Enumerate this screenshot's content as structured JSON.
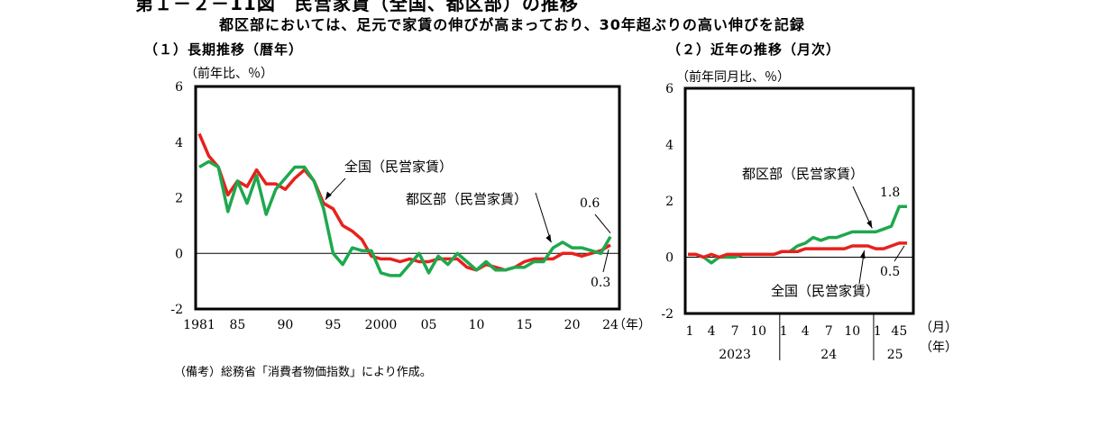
{
  "figure": {
    "title": "第１－２－11図　民営家賃（全国、都区部）の推移",
    "subtitle": "都区部においては、足元で家賃の伸びが高まっており、30年超ぶりの高い伸びを記録",
    "note": "（備考）総務省「消費者物価指数」により作成。",
    "colors": {
      "national": "#e8201c",
      "tokyo": "#1ea84e",
      "frame": "#000000"
    }
  },
  "chart_data": [
    {
      "type": "line",
      "heading": "（１）長期推移（暦年）",
      "ylabel": "（前年比、％）",
      "xlabel": "（年）",
      "ylim": [
        -2,
        6
      ],
      "yticks": [
        "-2",
        "0",
        "2",
        "4",
        "6"
      ],
      "xticks": [
        {
          "x": 1981,
          "label": "1981"
        },
        {
          "x": 1985,
          "label": "85"
        },
        {
          "x": 1990,
          "label": "90"
        },
        {
          "x": 1995,
          "label": "95"
        },
        {
          "x": 2000,
          "label": "2000"
        },
        {
          "x": 2005,
          "label": "05"
        },
        {
          "x": 2010,
          "label": "10"
        },
        {
          "x": 2015,
          "label": "15"
        },
        {
          "x": 2020,
          "label": "20"
        },
        {
          "x": 2024,
          "label": "24"
        }
      ],
      "x": [
        1981,
        1982,
        1983,
        1984,
        1985,
        1986,
        1987,
        1988,
        1989,
        1990,
        1991,
        1992,
        1993,
        1994,
        1995,
        1996,
        1997,
        1998,
        1999,
        2000,
        2001,
        2002,
        2003,
        2004,
        2005,
        2006,
        2007,
        2008,
        2009,
        2010,
        2011,
        2012,
        2013,
        2014,
        2015,
        2016,
        2017,
        2018,
        2019,
        2020,
        2021,
        2022,
        2023,
        2024
      ],
      "series": [
        {
          "name": "全国（民営家賃）",
          "key": "national",
          "values": [
            4.3,
            3.5,
            3.1,
            2.1,
            2.6,
            2.4,
            3.0,
            2.5,
            2.5,
            2.3,
            2.7,
            3.0,
            2.6,
            1.8,
            1.6,
            1.0,
            0.8,
            0.5,
            -0.1,
            -0.2,
            -0.2,
            -0.3,
            -0.2,
            -0.3,
            -0.3,
            -0.2,
            -0.2,
            -0.2,
            -0.5,
            -0.6,
            -0.4,
            -0.5,
            -0.6,
            -0.5,
            -0.3,
            -0.2,
            -0.2,
            -0.2,
            0.0,
            0.0,
            -0.1,
            0.0,
            0.1,
            0.3
          ]
        },
        {
          "name": "都区部（民営家賃）",
          "key": "tokyo",
          "values": [
            3.1,
            3.3,
            3.1,
            1.5,
            2.6,
            1.8,
            2.8,
            1.4,
            2.3,
            2.7,
            3.1,
            3.1,
            2.6,
            1.6,
            0.0,
            -0.4,
            0.2,
            0.1,
            0.1,
            -0.7,
            -0.8,
            -0.8,
            -0.4,
            0.0,
            -0.7,
            -0.1,
            -0.4,
            0.0,
            -0.3,
            -0.6,
            -0.3,
            -0.6,
            -0.6,
            -0.5,
            -0.5,
            -0.3,
            -0.3,
            0.2,
            0.4,
            0.2,
            0.2,
            0.1,
            0.0,
            0.6
          ]
        }
      ],
      "annotations": [
        {
          "text": "全国（民営家賃）",
          "series": "national",
          "year": 1994
        },
        {
          "text": "都区部（民営家賃）",
          "series": "tokyo",
          "year": 2018
        },
        {
          "text": "0.6",
          "series": "tokyo",
          "year": 2024
        },
        {
          "text": "0.3",
          "series": "national",
          "year": 2024
        }
      ]
    },
    {
      "type": "line",
      "heading": "（２）近年の推移（月次）",
      "ylabel": "（前年同月比、％）",
      "xlabel": "（月）",
      "xlabel2": "（年）",
      "ylim": [
        -2,
        6
      ],
      "yticks": [
        "-2",
        "0",
        "2",
        "4",
        "6"
      ],
      "month_ticks": [
        {
          "i": 0,
          "label": "1"
        },
        {
          "i": 3,
          "label": "4"
        },
        {
          "i": 6,
          "label": "7"
        },
        {
          "i": 9,
          "label": "10"
        },
        {
          "i": 12,
          "label": "1"
        },
        {
          "i": 15,
          "label": "4"
        },
        {
          "i": 18,
          "label": "7"
        },
        {
          "i": 21,
          "label": "10"
        },
        {
          "i": 24,
          "label": "1"
        },
        {
          "i": 27,
          "label": "45"
        }
      ],
      "year_labels": [
        {
          "from": 0,
          "to": 12,
          "label": "2023"
        },
        {
          "from": 12,
          "to": 24,
          "label": "24"
        },
        {
          "from": 24,
          "to": 29,
          "label": "25"
        }
      ],
      "series": [
        {
          "name": "都区部（民営家賃）",
          "key": "tokyo",
          "values": [
            0.1,
            0.1,
            0.0,
            -0.2,
            0.0,
            0.0,
            0.0,
            0.1,
            0.1,
            0.1,
            0.1,
            0.1,
            0.2,
            0.2,
            0.4,
            0.5,
            0.7,
            0.6,
            0.7,
            0.7,
            0.8,
            0.9,
            0.9,
            0.9,
            0.9,
            1.0,
            1.1,
            1.8,
            1.8
          ]
        },
        {
          "name": "全国（民営家賃）",
          "key": "national",
          "values": [
            0.1,
            0.1,
            0.0,
            0.1,
            0.0,
            0.1,
            0.1,
            0.1,
            0.1,
            0.1,
            0.1,
            0.1,
            0.2,
            0.2,
            0.2,
            0.3,
            0.3,
            0.3,
            0.3,
            0.3,
            0.3,
            0.4,
            0.4,
            0.4,
            0.3,
            0.3,
            0.4,
            0.5,
            0.5
          ]
        }
      ],
      "annotations": [
        {
          "text": "都区部（民営家賃）",
          "series": "tokyo",
          "index": 24
        },
        {
          "text": "1.8",
          "series": "tokyo",
          "index": 28
        },
        {
          "text": "全国（民営家賃）",
          "series": "national",
          "index": 23
        },
        {
          "text": "0.5",
          "series": "national",
          "index": 28
        }
      ]
    }
  ]
}
